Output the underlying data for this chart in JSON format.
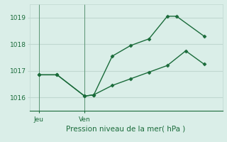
{
  "title": "Pression niveau de la mer( hPa )",
  "background_color": "#daeee8",
  "grid_color": "#c0d8d0",
  "line_color": "#1a6b3a",
  "ylim": [
    1015.5,
    1019.5
  ],
  "yticks": [
    1016,
    1017,
    1018,
    1019
  ],
  "xlabel_jeu": "Jeu",
  "xlabel_ven": "Ven",
  "jeu_x": 0.5,
  "ven_x": 3.0,
  "xlim": [
    0,
    10.5
  ],
  "line1_x": [
    0.5,
    1.5,
    3.0,
    3.5,
    4.5,
    5.5,
    6.5,
    7.5,
    8.0,
    9.5
  ],
  "line1_y": [
    1016.85,
    1016.85,
    1016.05,
    1016.1,
    1017.55,
    1017.95,
    1018.2,
    1019.05,
    1019.05,
    1018.3
  ],
  "line2_x": [
    0.5,
    1.5,
    3.0,
    3.5,
    4.5,
    5.5,
    6.5,
    7.5,
    8.5,
    9.5
  ],
  "line2_y": [
    1016.85,
    1016.85,
    1016.05,
    1016.1,
    1016.45,
    1016.7,
    1016.95,
    1017.2,
    1017.75,
    1017.25
  ],
  "title_fontsize": 7.5,
  "tick_fontsize": 6.5
}
